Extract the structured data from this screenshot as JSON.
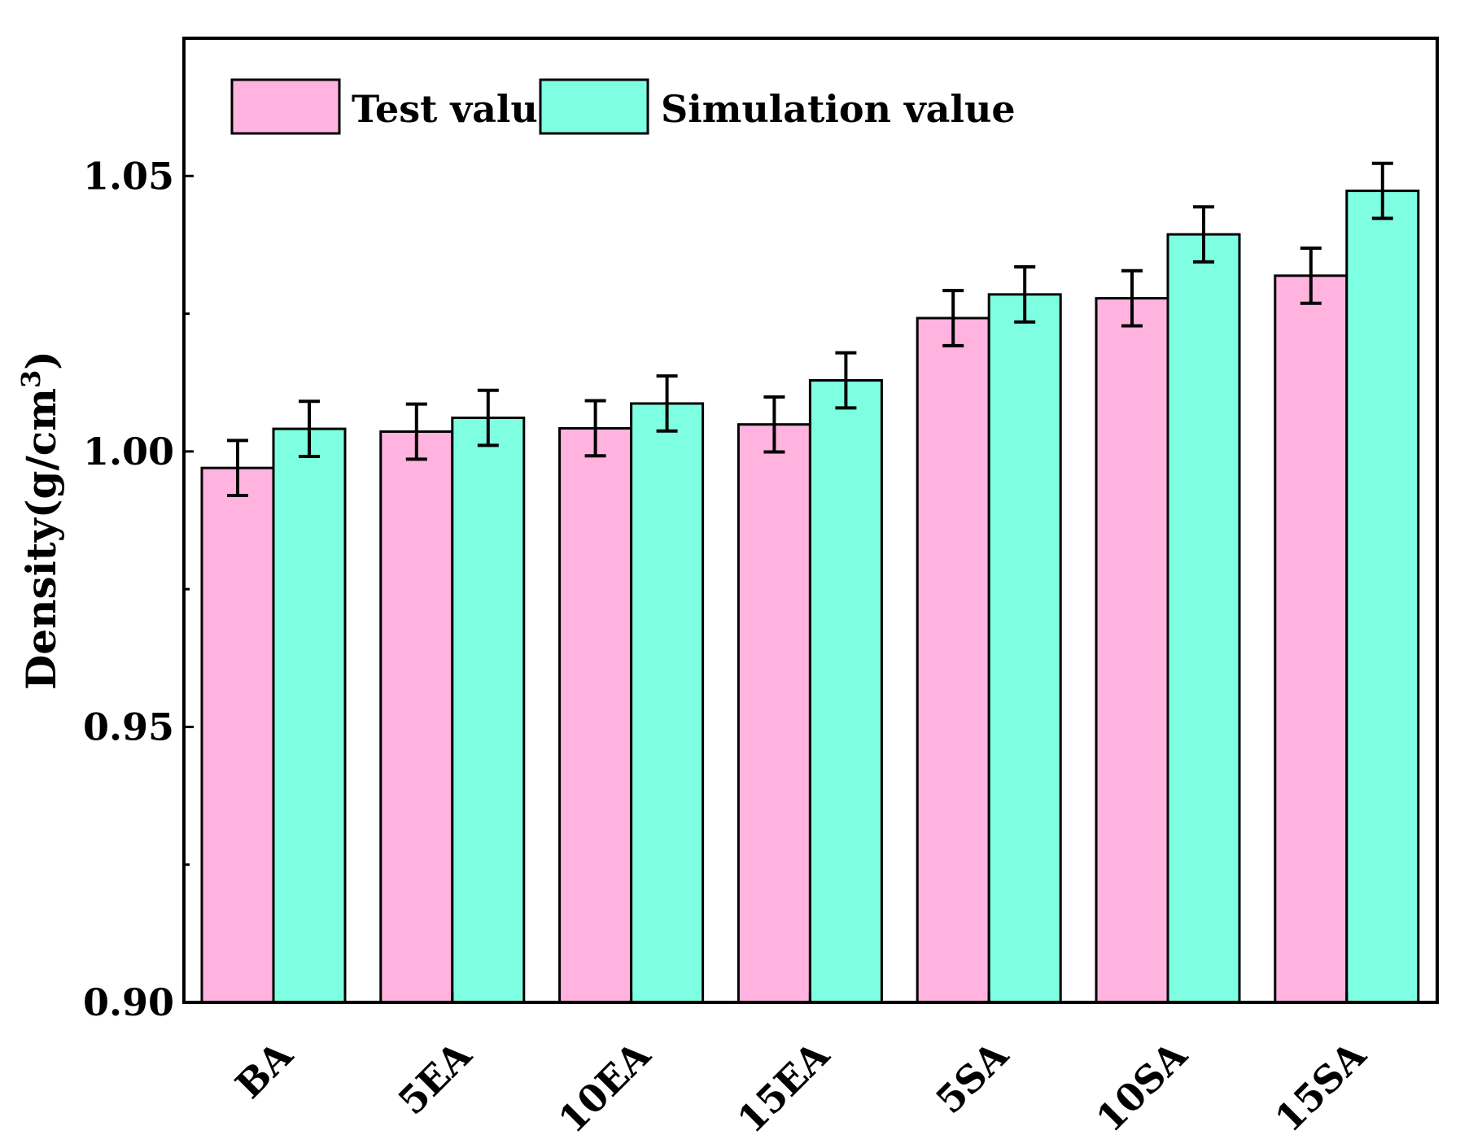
{
  "chart_data": {
    "type": "bar",
    "title": "",
    "xlabel": "",
    "ylabel": "Density(g/cm",
    "ylabel_superscript": "3",
    "ylabel_close": ")",
    "ylim": [
      0.9,
      1.075
    ],
    "yticks": [
      0.9,
      0.95,
      1.0,
      1.05
    ],
    "ytick_labels": [
      "0.90",
      "0.95",
      "1.00",
      "1.05"
    ],
    "yminor_ticks": [
      0.925,
      0.975,
      1.025
    ],
    "categories": [
      "BA",
      "5EA",
      "10EA",
      "15EA",
      "5SA",
      "10SA",
      "15SA"
    ],
    "series": [
      {
        "name": "Test value",
        "color": "#ffb3de",
        "values": [
          0.997,
          1.0036,
          1.0042,
          1.0049,
          1.0242,
          1.0278,
          1.0319
        ],
        "errors": [
          0.005,
          0.005,
          0.005,
          0.005,
          0.005,
          0.005,
          0.005
        ]
      },
      {
        "name": "Simulation value",
        "color": "#7fffe1",
        "values": [
          1.0041,
          1.0061,
          1.0087,
          1.0129,
          1.0285,
          1.0394,
          1.0473
        ],
        "errors": [
          0.005,
          0.005,
          0.005,
          0.005,
          0.005,
          0.005,
          0.005
        ]
      }
    ],
    "grid": false,
    "legend_position": "top-left"
  }
}
